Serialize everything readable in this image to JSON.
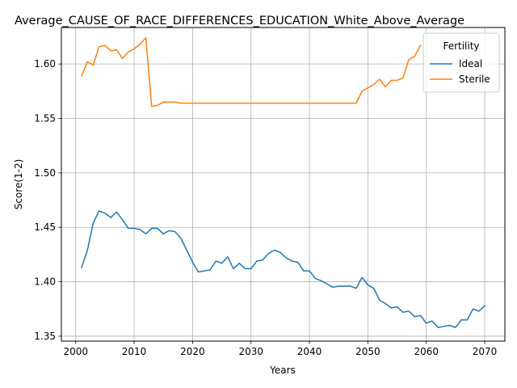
{
  "chart_data": {
    "type": "line",
    "title": "Average_CAUSE_OF_RACE_DIFFERENCES_EDUCATION_White_Above_Average",
    "xlabel": "Years",
    "ylabel": "Score(1-2)",
    "xlim": [
      1997.55,
      2073.45
    ],
    "ylim": [
      1.3455,
      1.6335
    ],
    "xticks": [
      2000,
      2010,
      2020,
      2030,
      2040,
      2050,
      2060,
      2070
    ],
    "yticks": [
      1.35,
      1.4,
      1.45,
      1.5,
      1.55,
      1.6
    ],
    "ytick_labels": [
      "1.35",
      "1.40",
      "1.45",
      "1.50",
      "1.55",
      "1.60"
    ],
    "grid": true,
    "legend": {
      "title": "Fertility",
      "placement": "top-right"
    },
    "series": [
      {
        "name": "Ideal",
        "color": "#1f77b4",
        "x": [
          2001,
          2002,
          2003,
          2004,
          2005,
          2006,
          2007,
          2008,
          2009,
          2010,
          2011,
          2012,
          2013,
          2014,
          2015,
          2016,
          2017,
          2018,
          2019,
          2020,
          2021,
          2022,
          2023,
          2024,
          2025,
          2026,
          2027,
          2028,
          2029,
          2030,
          2031,
          2032,
          2033,
          2034,
          2035,
          2036,
          2037,
          2038,
          2039,
          2040,
          2041,
          2042,
          2043,
          2044,
          2045,
          2046,
          2047,
          2048,
          2049,
          2050,
          2051,
          2052,
          2053,
          2054,
          2055,
          2056,
          2057,
          2058,
          2059,
          2060,
          2061,
          2062,
          2063,
          2064,
          2065,
          2066,
          2067,
          2068,
          2069,
          2070
        ],
        "values": [
          1.413,
          1.429,
          1.454,
          1.465,
          1.463,
          1.459,
          1.464,
          1.457,
          1.449,
          1.449,
          1.448,
          1.444,
          1.449,
          1.449,
          1.444,
          1.447,
          1.446,
          1.44,
          1.429,
          1.418,
          1.409,
          1.41,
          1.411,
          1.419,
          1.417,
          1.423,
          1.412,
          1.417,
          1.412,
          1.412,
          1.419,
          1.42,
          1.426,
          1.429,
          1.427,
          1.422,
          1.419,
          1.418,
          1.41,
          1.41,
          1.403,
          1.401,
          1.398,
          1.395,
          1.396,
          1.396,
          1.396,
          1.394,
          1.404,
          1.397,
          1.394,
          1.383,
          1.38,
          1.376,
          1.377,
          1.372,
          1.373,
          1.368,
          1.369,
          1.362,
          1.364,
          1.358,
          1.359,
          1.36,
          1.358,
          1.365,
          1.365,
          1.375,
          1.373,
          1.378
        ]
      },
      {
        "name": "Sterile",
        "color": "#ff7f0e",
        "x": [
          2001,
          2002,
          2003,
          2004,
          2005,
          2006,
          2007,
          2008,
          2009,
          2010,
          2011,
          2012,
          2013,
          2014,
          2015,
          2016,
          2017,
          2018,
          2019,
          2020,
          2021,
          2022,
          2023,
          2024,
          2025,
          2026,
          2027,
          2028,
          2029,
          2030,
          2031,
          2032,
          2033,
          2034,
          2035,
          2036,
          2037,
          2038,
          2039,
          2040,
          2041,
          2042,
          2043,
          2044,
          2045,
          2046,
          2047,
          2048,
          2049,
          2050,
          2051,
          2052,
          2053,
          2054,
          2055,
          2056,
          2057,
          2058,
          2059
        ],
        "values": [
          1.589,
          1.602,
          1.599,
          1.616,
          1.617,
          1.612,
          1.613,
          1.605,
          1.611,
          1.614,
          1.618,
          1.624,
          1.561,
          1.562,
          1.565,
          1.565,
          1.565,
          1.564,
          1.564,
          1.564,
          1.564,
          1.564,
          1.564,
          1.564,
          1.564,
          1.564,
          1.564,
          1.564,
          1.564,
          1.564,
          1.564,
          1.564,
          1.564,
          1.564,
          1.564,
          1.564,
          1.564,
          1.564,
          1.564,
          1.564,
          1.564,
          1.564,
          1.564,
          1.564,
          1.564,
          1.564,
          1.564,
          1.564,
          1.575,
          1.578,
          1.581,
          1.586,
          1.579,
          1.585,
          1.585,
          1.587,
          1.604,
          1.607,
          1.617
        ]
      }
    ]
  }
}
